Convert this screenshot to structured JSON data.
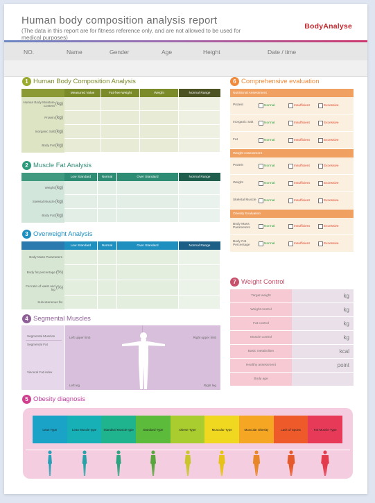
{
  "header": {
    "title": "Human body composition analysis report",
    "subtitle": "(The data in this report are for fitness reference only, and are not allowed to be used for medical purposes)",
    "brand": "BodyAnalyse",
    "columns": [
      "NO.",
      "Name",
      "Gender",
      "Age",
      "Height",
      "Date / time"
    ]
  },
  "s1": {
    "number": "1",
    "title": "Human Body Composition Analysis",
    "cols": [
      "Measured Value",
      "Fat-free Weight",
      "Weight",
      "Normal Range"
    ],
    "rows": [
      {
        "label": "Human Body Moisture Content",
        "unit": "(kg)"
      },
      {
        "label": "Protein",
        "unit": "(kg)"
      },
      {
        "label": "Inorganic Salt",
        "unit": "(kg)"
      },
      {
        "label": "Body Fat",
        "unit": "(kg)"
      }
    ],
    "color": "#7a8a2c"
  },
  "s2": {
    "number": "2",
    "title": "Muscle Fat Analysis",
    "cols": [
      "Low Standard",
      "Normal",
      "Over Standard",
      "Normal Range"
    ],
    "rows": [
      {
        "label": "Weight",
        "unit": "(kg)"
      },
      {
        "label": "Skeletal Muscle",
        "unit": "(kg)"
      },
      {
        "label": "Body Fat",
        "unit": "(kg)"
      }
    ],
    "color": "#2e8b74"
  },
  "s3": {
    "number": "3",
    "title": "Overweight Analysis",
    "cols": [
      "Low Standard",
      "Normal",
      "Over Standard",
      "Normal Range"
    ],
    "rows": [
      {
        "label": "Body Mass Parameters",
        "unit": ""
      },
      {
        "label": "Body fat percentage",
        "unit": "(%)"
      },
      {
        "label": "Fat ratio of waist and hip",
        "unit": "(%)"
      },
      {
        "label": "Subcutaneous fat",
        "unit": ""
      }
    ],
    "color": "#1f8fc0"
  },
  "s4": {
    "number": "4",
    "title": "Segmental Muscles",
    "left_top": "Segmental Muscles",
    "left_sub": "Segmental Fat",
    "left_bottom": "Visceral Fat index",
    "left_upper": "Left upper limb",
    "right_upper": "Right upper limb",
    "left_leg": "Left leg",
    "right_leg": "Right leg",
    "color": "#8e5f97"
  },
  "s5": {
    "number": "5",
    "title": "Obesity diagnosis",
    "types": [
      "Lean Type",
      "Lean Muscle type",
      "Standard Muscle type",
      "Standard Type",
      "Obese Type",
      "Muscular Type",
      "Muscular Obesity",
      "Lack of Sports",
      "Fat Muscle Type"
    ],
    "colors": [
      "#1aa3c7",
      "#17b0b6",
      "#1fb38e",
      "#5dbb3b",
      "#a9cc2e",
      "#f0d820",
      "#f5a623",
      "#ef5a2b",
      "#e63a58"
    ],
    "color": "#c03c9b"
  },
  "s6": {
    "number": "6",
    "title": "Comprehensive evaluation",
    "groups": [
      {
        "head": "Nutritional Assessment",
        "rows": [
          {
            "label": "Protein",
            "opts": [
              "Normal",
              "Insufficient",
              "Excessive"
            ]
          },
          {
            "label": "Inorganic Salt",
            "opts": [
              "Normal",
              "Insufficient",
              "Excessive"
            ]
          },
          {
            "label": "Fat",
            "opts": [
              "Normal",
              "Insufficient",
              "Excessive"
            ]
          }
        ]
      },
      {
        "head": "Weight Assessment",
        "rows": [
          {
            "label": "Protein",
            "opts": [
              "Normal",
              "Insufficient",
              "Excessive"
            ]
          },
          {
            "label": "Weight",
            "opts": [
              "Normal",
              "Insufficient",
              "Excessive"
            ]
          },
          {
            "label": "Skeletal Muscle",
            "opts": [
              "Normal",
              "Insufficient",
              "Excessive"
            ]
          }
        ]
      },
      {
        "head": "Obesity Evaluation",
        "rows": [
          {
            "label": "Body Mass Parameters",
            "opts": [
              "Normal",
              "Insufficient",
              "Excessive"
            ]
          },
          {
            "label": "Body Fat Percentage",
            "opts": [
              "Normal",
              "Insufficient",
              "Excessive"
            ]
          }
        ]
      }
    ],
    "color": "#f08a3c"
  },
  "s7": {
    "number": "7",
    "title": "Weight Control",
    "rows": [
      {
        "label": "Target weight",
        "unit": "kg"
      },
      {
        "label": "Weight control",
        "unit": "kg"
      },
      {
        "label": "Fat control",
        "unit": "kg"
      },
      {
        "label": "Muscle control",
        "unit": "kg"
      },
      {
        "label": "Basic metabolism",
        "unit": "kcal"
      },
      {
        "label": "Healthy assessment",
        "unit": "point"
      },
      {
        "label": "Body age",
        "unit": ""
      }
    ],
    "color": "#c9506a"
  }
}
